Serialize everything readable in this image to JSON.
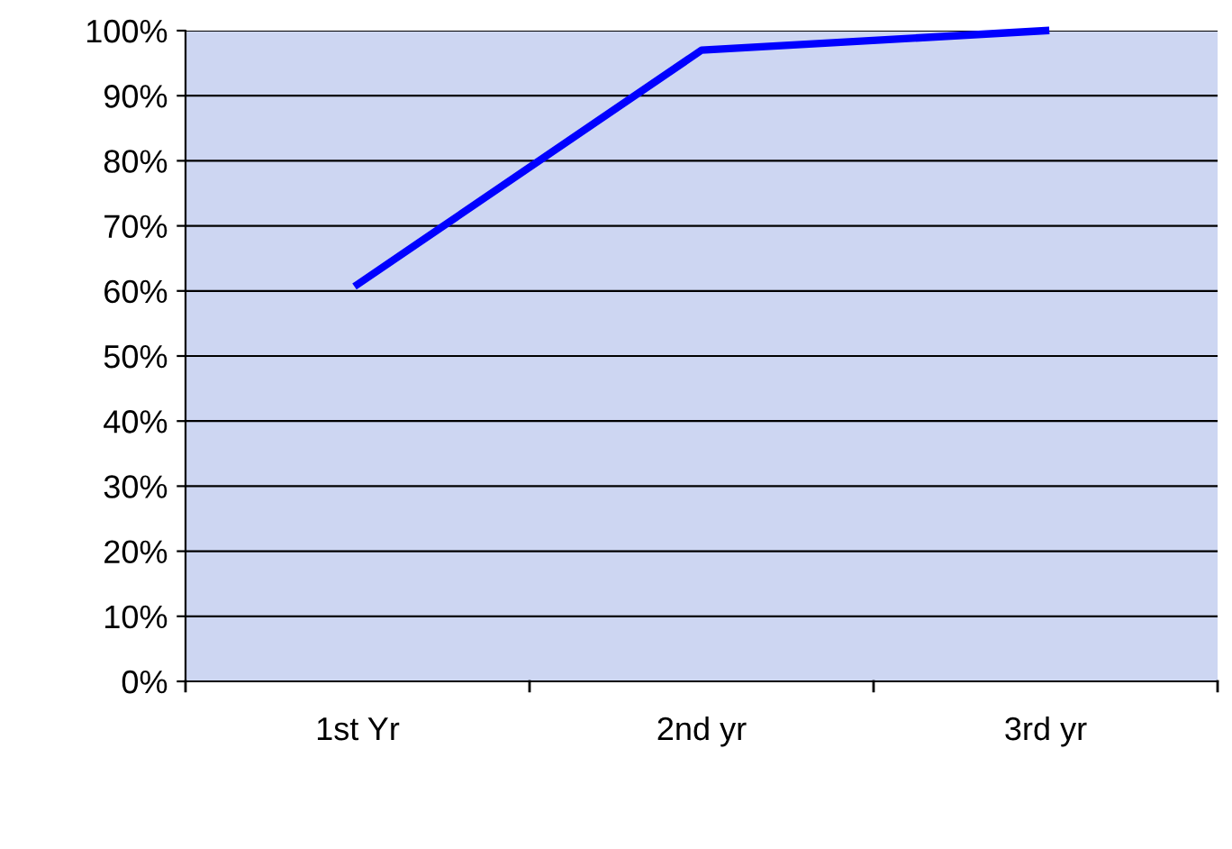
{
  "chart_data": {
    "type": "line",
    "categories": [
      "1st Yr",
      "2nd yr",
      "3rd yr"
    ],
    "series": [
      {
        "color": "#0000ff",
        "values": [
          0.61,
          0.97,
          1.0
        ]
      }
    ],
    "ylim": [
      0,
      1
    ],
    "yticks": [
      {
        "value": 0,
        "label": "0%"
      },
      {
        "value": 0.1,
        "label": "10%"
      },
      {
        "value": 0.2,
        "label": "20%"
      },
      {
        "value": 0.3,
        "label": "30%"
      },
      {
        "value": 0.4,
        "label": "40%"
      },
      {
        "value": 0.5,
        "label": "50%"
      },
      {
        "value": 0.6,
        "label": "60%"
      },
      {
        "value": 0.7,
        "label": "70%"
      },
      {
        "value": 0.8,
        "label": "80%"
      },
      {
        "value": 0.9,
        "label": "90%"
      },
      {
        "value": 1,
        "label": "100%"
      }
    ],
    "grid": "y",
    "legend": false,
    "marker": "none",
    "line_style": "solid"
  }
}
